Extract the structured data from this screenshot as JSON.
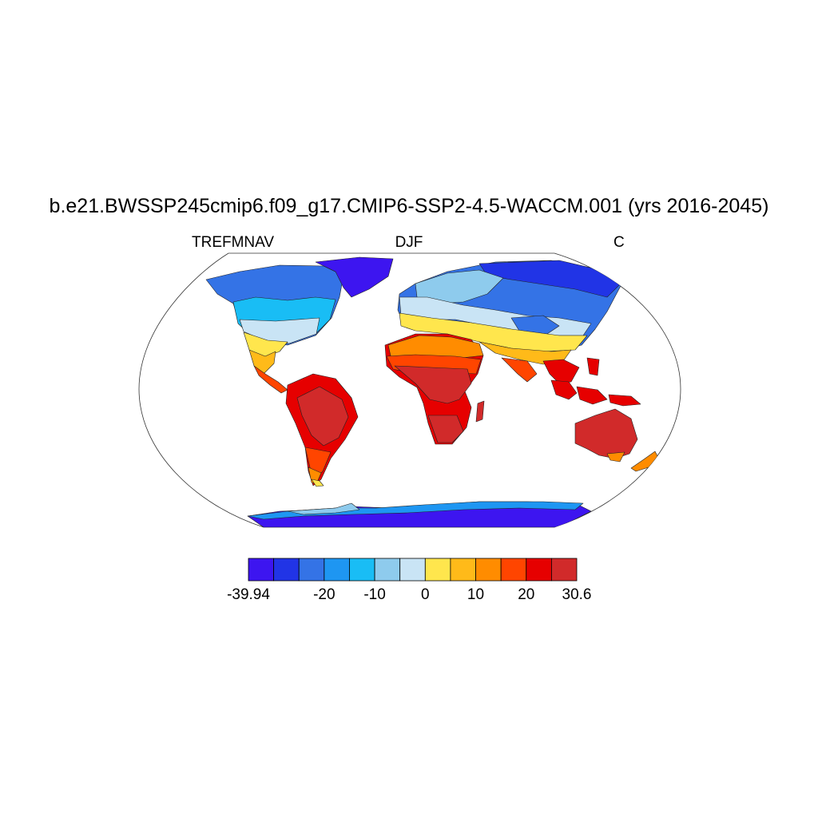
{
  "title": "b.e21.BWSSP245cmip6.f09_g17.CMIP6-SSP2-4.5-WACCM.001 (yrs 2016-2045)",
  "subtitle_left": "TREFMNAV",
  "subtitle_center": "DJF",
  "subtitle_right": "C",
  "colorbar": {
    "colors": [
      "#3d15f0",
      "#2134e6",
      "#3473e6",
      "#1e96f2",
      "#19bdf5",
      "#8ecbed",
      "#c9e4f5",
      "#ffe64d",
      "#ffba19",
      "#ff8c00",
      "#ff4500",
      "#e60000",
      "#d12a2a"
    ],
    "labels": [
      "-39.94",
      "-20",
      "-10",
      "0",
      "10",
      "20",
      "30.6"
    ],
    "label_boxes": [
      0,
      3,
      5,
      7,
      9,
      11,
      13
    ]
  },
  "map": {
    "projection": "Robinson",
    "variable": "TREFMNAV",
    "units": "C",
    "season": "DJF",
    "ocean_color": "#ffffff"
  }
}
